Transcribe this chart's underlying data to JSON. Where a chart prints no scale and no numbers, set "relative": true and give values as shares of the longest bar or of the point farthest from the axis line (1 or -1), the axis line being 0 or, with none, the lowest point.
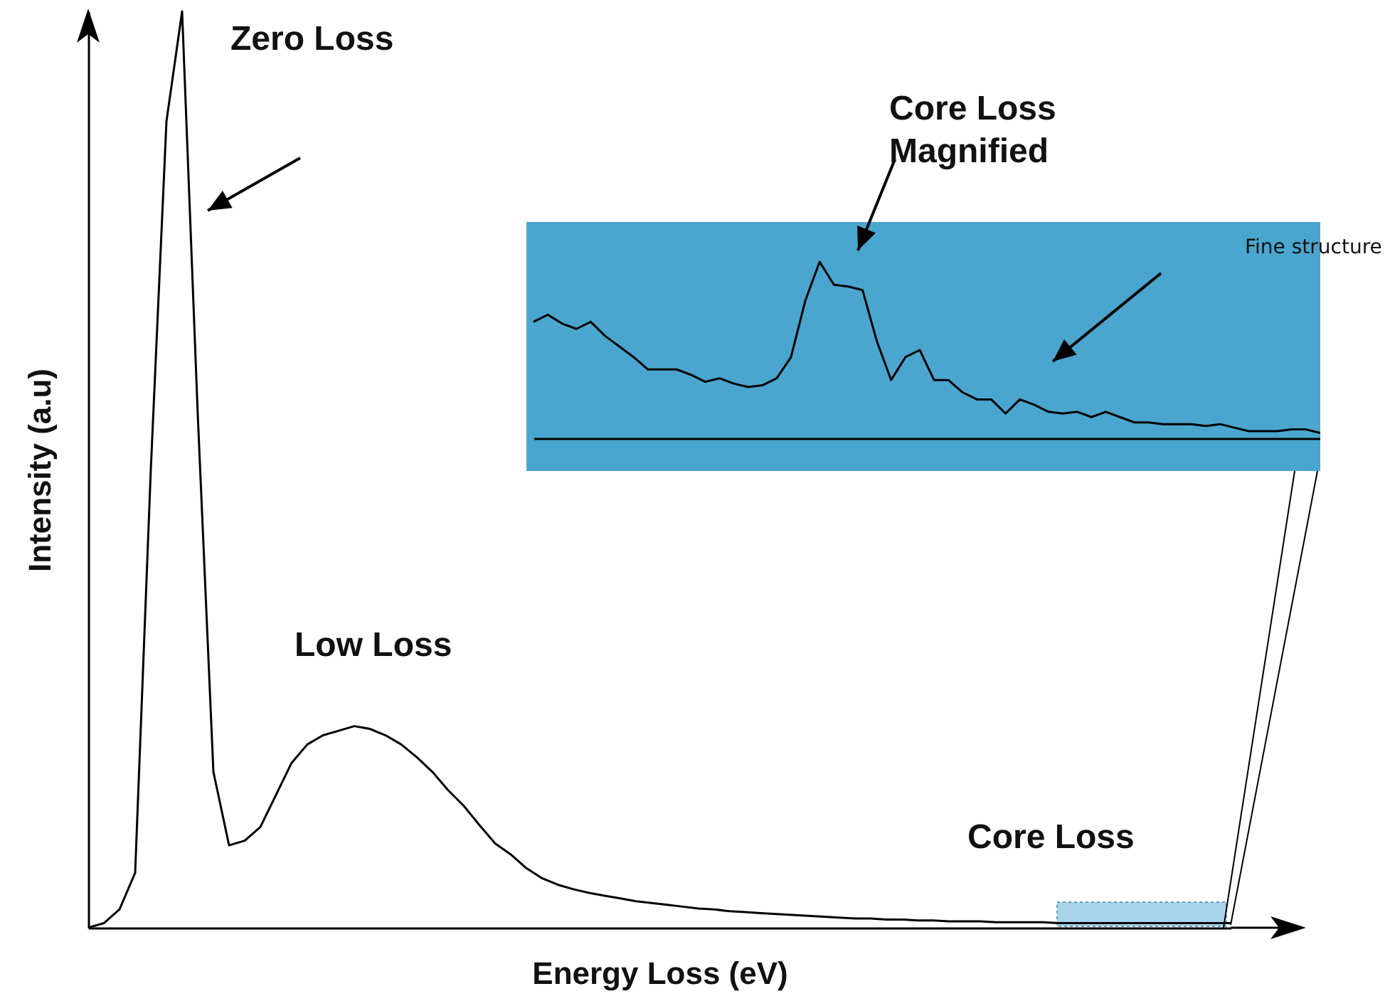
{
  "chart_data": [
    {
      "type": "line",
      "relative": true,
      "xlabel": "Energy Loss (eV)",
      "ylabel": "Intensity (a.u)",
      "color": "#000000",
      "annotations": [
        "Zero Loss",
        "Low Loss",
        "Core Loss"
      ],
      "categories": [
        null,
        null,
        null,
        null,
        null,
        null,
        null,
        null,
        null,
        null,
        null,
        null,
        null,
        null,
        null,
        null,
        null,
        null,
        null,
        null,
        null,
        null,
        null,
        null,
        null,
        null,
        null,
        null,
        null,
        null,
        null,
        null,
        null,
        null,
        null,
        null,
        null,
        null,
        null,
        null,
        null,
        null,
        null,
        null,
        null,
        null,
        null,
        null,
        null,
        null,
        null,
        null,
        null,
        null,
        null,
        null,
        null,
        null,
        null,
        null,
        null,
        null,
        null,
        null,
        null,
        null,
        null,
        null,
        null,
        null,
        null,
        null,
        null,
        null
      ],
      "values": [
        0,
        0.005,
        0.02,
        0.06,
        0.5,
        0.88,
        1,
        0.56,
        0.17,
        0.09,
        0.095,
        0.11,
        0.145,
        0.18,
        0.2,
        0.21,
        0.215,
        0.22,
        0.217,
        0.21,
        0.2,
        0.186,
        0.17,
        0.15,
        0.133,
        0.112,
        0.092,
        0.08,
        0.065,
        0.054,
        0.047,
        0.042,
        0.038,
        0.035,
        0.032,
        0.029,
        0.027,
        0.025,
        0.023,
        0.021,
        0.02,
        0.018,
        0.017,
        0.016,
        0.015,
        0.014,
        0.013,
        0.012,
        0.011,
        0.01,
        0.01,
        0.009,
        0.009,
        0.008,
        0.008,
        0.007,
        0.007,
        0.007,
        0.006,
        0.006,
        0.006,
        0.006,
        0.005,
        0.005,
        0.005,
        0.005,
        0.005,
        0.005,
        0.005,
        0.005,
        0.005,
        0.005,
        0.005,
        0.005
      ]
    },
    {
      "type": "line",
      "relative": true,
      "color": "#000000",
      "annotations": [
        "Core Loss Magnified",
        "Fine structure"
      ],
      "categories": [
        null,
        null,
        null,
        null,
        null,
        null,
        null,
        null,
        null,
        null,
        null,
        null,
        null,
        null,
        null,
        null,
        null,
        null,
        null,
        null,
        null,
        null,
        null,
        null,
        null,
        null,
        null,
        null,
        null,
        null,
        null,
        null,
        null,
        null,
        null,
        null,
        null,
        null,
        null,
        null,
        null,
        null,
        null,
        null,
        null,
        null,
        null,
        null,
        null,
        null,
        null,
        null,
        null,
        null,
        null,
        null
      ],
      "values": [
        0.66,
        0.7,
        0.65,
        0.62,
        0.66,
        0.58,
        0.52,
        0.46,
        0.39,
        0.39,
        0.39,
        0.36,
        0.32,
        0.34,
        0.31,
        0.29,
        0.3,
        0.34,
        0.46,
        0.78,
        1,
        0.87,
        0.86,
        0.84,
        0.55,
        0.33,
        0.46,
        0.5,
        0.33,
        0.33,
        0.26,
        0.22,
        0.22,
        0.14,
        0.22,
        0.19,
        0.15,
        0.14,
        0.15,
        0.12,
        0.15,
        0.12,
        0.09,
        0.09,
        0.08,
        0.08,
        0.08,
        0.07,
        0.08,
        0.06,
        0.04,
        0.04,
        0.04,
        0.05,
        0.05,
        0.03
      ]
    }
  ]
}
